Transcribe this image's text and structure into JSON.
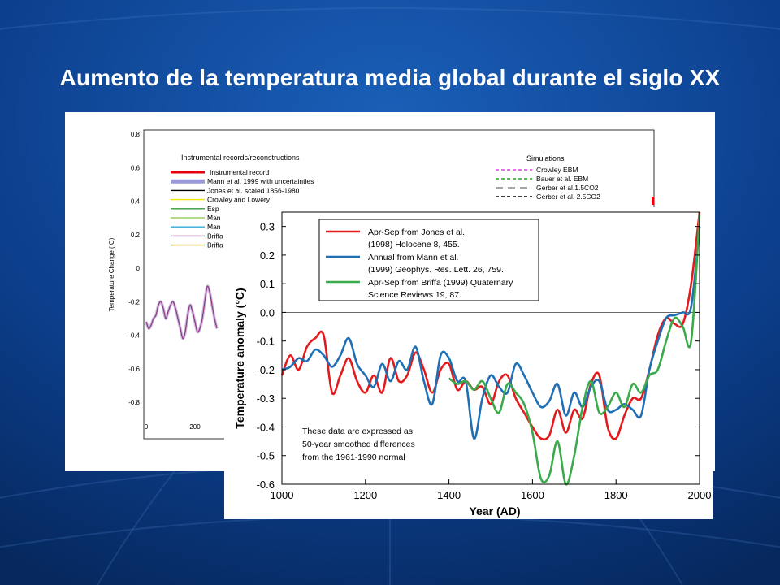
{
  "slide": {
    "title": "Aumento de la temperatura media global durante el siglo XX",
    "colors": {
      "background": "#0a3f8c",
      "title": "#ffffff"
    }
  },
  "chart_data": [
    {
      "type": "line",
      "ylabel": "Temperature Change ( C)",
      "yticks": [
        "0.8",
        "0.6",
        "0.4",
        "0.2",
        "0",
        "-0.2",
        "-0.4",
        "-0.6",
        "-0.8"
      ],
      "xticks_visible": [
        "0",
        "200"
      ],
      "ylim": [
        -0.8,
        0.8
      ],
      "legend_left_title": "Instrumental records/reconstructions",
      "legend_left": [
        {
          "name": "Instrumental record",
          "color": "#e3000f"
        },
        {
          "name": "Mann et al. 1999 with uncertainties",
          "color": "#9a9ad8"
        },
        {
          "name": "Jones et al. scaled 1856-1980",
          "color": "#000000"
        },
        {
          "name": "Crowley and Lowery",
          "color": "#f2e600"
        },
        {
          "name": "Esp",
          "color": "#2f9a3a"
        },
        {
          "name": "Man",
          "color": "#9ad060"
        },
        {
          "name": "Man",
          "color": "#30a8d8"
        },
        {
          "name": "Briffa",
          "color": "#b04080"
        },
        {
          "name": "Briffa",
          "color": "#e8a000"
        }
      ],
      "legend_right_title": "Simulations",
      "legend_right": [
        {
          "name": "Crowley EBM",
          "color": "#e040e0",
          "style": "dashed"
        },
        {
          "name": "Bauer et al. EBM",
          "color": "#2aa02a",
          "style": "dashed"
        },
        {
          "name": "Gerber et al.1.5CO2",
          "color": "#888888",
          "style": "long-dashed"
        },
        {
          "name": "Gerber et al. 2.5CO2",
          "color": "#000000",
          "style": "dashed"
        }
      ],
      "series": [
        {
          "name": "Mann et al. 1999 with uncertainties",
          "color": "#8a3a80",
          "x": [
            0,
            10,
            20,
            30,
            40,
            50,
            60,
            70,
            80,
            90,
            100,
            110,
            120,
            130,
            140,
            150,
            160,
            170,
            180,
            190,
            200,
            210,
            220,
            230,
            240,
            250,
            260,
            270,
            280,
            290
          ],
          "y": [
            -0.32,
            -0.36,
            -0.34,
            -0.3,
            -0.28,
            -0.22,
            -0.2,
            -0.24,
            -0.3,
            -0.26,
            -0.22,
            -0.2,
            -0.24,
            -0.3,
            -0.36,
            -0.42,
            -0.38,
            -0.28,
            -0.22,
            -0.26,
            -0.32,
            -0.38,
            -0.36,
            -0.3,
            -0.2,
            -0.11,
            -0.14,
            -0.22,
            -0.3,
            -0.36
          ]
        }
      ]
    },
    {
      "type": "line",
      "xlabel": "Year (AD)",
      "ylabel": "Temperature anomaly (°C)",
      "xlim": [
        1000,
        2000
      ],
      "ylim": [
        -0.6,
        0.35
      ],
      "xticks": [
        "1000",
        "1200",
        "1400",
        "1600",
        "1800",
        "2000"
      ],
      "yticks": [
        "0.3",
        "0.2",
        "0.1",
        "0.0",
        "-0.1",
        "-0.2",
        "-0.3",
        "-0.4",
        "-0.5",
        "-0.6"
      ],
      "legend": [
        {
          "line1": "Apr-Sep from Jones et al.",
          "line2": "(1998) Holocene 8, 455.",
          "color": "#e31a1c"
        },
        {
          "line1": "Annual from Mann et al.",
          "line2": "(1999) Geophys. Res. Lett. 26, 759.",
          "color": "#1f6fb4"
        },
        {
          "line1": "Apr-Sep from Briffa (1999) Quaternary",
          "line2": "Science Reviews 19, 87.",
          "color": "#3aaa4a"
        }
      ],
      "annotation": [
        "These data are expressed as",
        "50-year smoothed differences",
        "from the 1961-1990 normal"
      ],
      "series": [
        {
          "name": "Apr-Sep from Jones et al.",
          "color": "#e31a1c",
          "x": [
            1000,
            1020,
            1040,
            1060,
            1080,
            1100,
            1120,
            1140,
            1160,
            1180,
            1200,
            1220,
            1240,
            1260,
            1280,
            1300,
            1320,
            1340,
            1360,
            1380,
            1400,
            1420,
            1440,
            1460,
            1480,
            1500,
            1520,
            1540,
            1560,
            1580,
            1600,
            1620,
            1640,
            1660,
            1680,
            1700,
            1720,
            1740,
            1760,
            1780,
            1800,
            1820,
            1840,
            1860,
            1880,
            1900,
            1920,
            1940,
            1960,
            1980,
            2000
          ],
          "y": [
            -0.22,
            -0.15,
            -0.2,
            -0.12,
            -0.09,
            -0.08,
            -0.28,
            -0.22,
            -0.16,
            -0.24,
            -0.28,
            -0.22,
            -0.28,
            -0.16,
            -0.24,
            -0.22,
            -0.14,
            -0.2,
            -0.28,
            -0.2,
            -0.18,
            -0.27,
            -0.24,
            -0.27,
            -0.26,
            -0.32,
            -0.24,
            -0.22,
            -0.3,
            -0.35,
            -0.4,
            -0.44,
            -0.43,
            -0.34,
            -0.42,
            -0.34,
            -0.37,
            -0.25,
            -0.22,
            -0.4,
            -0.44,
            -0.36,
            -0.3,
            -0.3,
            -0.2,
            -0.08,
            -0.02,
            -0.04,
            -0.04,
            0.1,
            0.35
          ]
        },
        {
          "name": "Annual from Mann et al.",
          "color": "#1f6fb4",
          "x": [
            1000,
            1020,
            1040,
            1060,
            1080,
            1100,
            1120,
            1140,
            1160,
            1180,
            1200,
            1220,
            1240,
            1260,
            1280,
            1300,
            1320,
            1340,
            1360,
            1380,
            1400,
            1420,
            1440,
            1460,
            1480,
            1500,
            1520,
            1540,
            1560,
            1580,
            1600,
            1620,
            1640,
            1660,
            1680,
            1700,
            1720,
            1740,
            1760,
            1780,
            1800,
            1820,
            1840,
            1860,
            1880,
            1900,
            1920,
            1940,
            1960,
            1980,
            2000
          ],
          "y": [
            -0.2,
            -0.19,
            -0.16,
            -0.17,
            -0.13,
            -0.15,
            -0.19,
            -0.15,
            -0.09,
            -0.18,
            -0.22,
            -0.26,
            -0.18,
            -0.24,
            -0.17,
            -0.2,
            -0.12,
            -0.24,
            -0.32,
            -0.15,
            -0.16,
            -0.24,
            -0.24,
            -0.44,
            -0.3,
            -0.22,
            -0.26,
            -0.28,
            -0.18,
            -0.22,
            -0.28,
            -0.33,
            -0.31,
            -0.25,
            -0.36,
            -0.28,
            -0.33,
            -0.26,
            -0.24,
            -0.34,
            -0.34,
            -0.32,
            -0.34,
            -0.36,
            -0.2,
            -0.1,
            -0.02,
            -0.01,
            0.0,
            0.02,
            0.3
          ]
        },
        {
          "name": "Apr-Sep from Briffa (1999) Quaternary",
          "color": "#3aaa4a",
          "x": [
            1400,
            1420,
            1440,
            1460,
            1480,
            1500,
            1520,
            1540,
            1560,
            1580,
            1600,
            1620,
            1640,
            1660,
            1680,
            1700,
            1720,
            1740,
            1760,
            1780,
            1800,
            1820,
            1840,
            1860,
            1880,
            1900,
            1920,
            1940,
            1960,
            1980,
            2000
          ],
          "y": [
            -0.23,
            -0.25,
            -0.24,
            -0.27,
            -0.24,
            -0.3,
            -0.35,
            -0.25,
            -0.28,
            -0.32,
            -0.42,
            -0.58,
            -0.57,
            -0.45,
            -0.6,
            -0.5,
            -0.33,
            -0.24,
            -0.35,
            -0.33,
            -0.28,
            -0.33,
            -0.25,
            -0.28,
            -0.22,
            -0.2,
            -0.1,
            -0.02,
            -0.05,
            -0.1,
            0.34
          ]
        }
      ]
    }
  ]
}
